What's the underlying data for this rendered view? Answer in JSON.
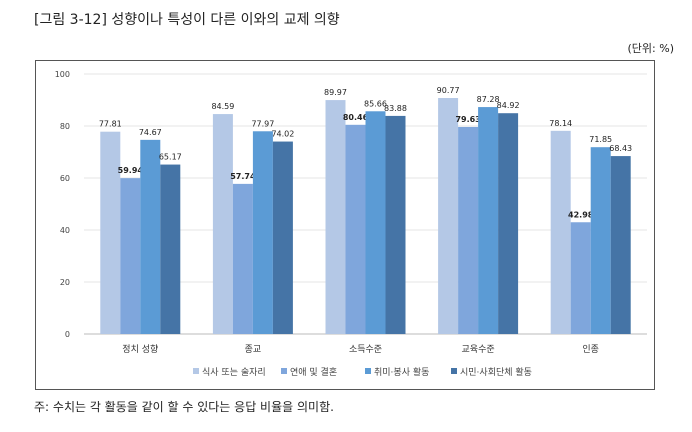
{
  "title": "[그림 3-12] 성향이나 특성이 다른 이와의 교제 의향",
  "unit": "(단위: %)",
  "note": "주: 수치는 각 활동을 같이 할 수 있다는 응답 비율을 의미함.",
  "chart_data": {
    "type": "bar",
    "categories": [
      "정치 성향",
      "종교",
      "소득수준",
      "교육수준",
      "인종"
    ],
    "series": [
      {
        "name": "식사 또는 술자리",
        "color": "#b4c8e6",
        "values": [
          77.81,
          84.59,
          89.97,
          90.77,
          78.14
        ]
      },
      {
        "name": "연애 및 결혼",
        "color": "#7fa6dc",
        "values": [
          59.94,
          57.74,
          80.46,
          79.63,
          42.98
        ]
      },
      {
        "name": "취미·봉사 활동",
        "color": "#5b9bd5",
        "values": [
          74.67,
          77.97,
          85.66,
          87.28,
          71.85
        ]
      },
      {
        "name": "시민·사회단체 활동",
        "color": "#4574a6",
        "values": [
          65.17,
          74.02,
          83.88,
          84.92,
          68.43
        ]
      }
    ],
    "ylim": [
      0,
      100
    ],
    "yticks": [
      0,
      20,
      40,
      60,
      80,
      100
    ],
    "legend": "bottom",
    "grid": true
  }
}
